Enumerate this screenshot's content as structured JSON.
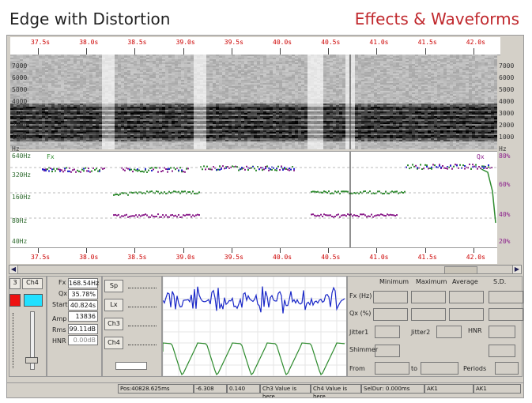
{
  "header": {
    "title": "Edge with Distortion",
    "subtitle": "Effects & Waveforms"
  },
  "time_ticks": [
    "37.5s",
    "38.0s",
    "38.5s",
    "39.0s",
    "39.5s",
    "40.0s",
    "40.5s",
    "41.0s",
    "41.5s",
    "42.0s"
  ],
  "bottom_ticks": [
    "37.5s",
    "38.0s",
    "38.5s",
    "39.0s",
    "39.5s",
    "40.0s",
    "40.5s",
    "41.0s",
    "41.5s",
    "42.0s"
  ],
  "spectrogram": {
    "freq_left": [
      "7000",
      "6000",
      "5000",
      "4000",
      "3000",
      "2000",
      "1000",
      "Hz"
    ],
    "freq_right": [
      "7000",
      "6000",
      "5000",
      "4000",
      "3000",
      "2000",
      "1000",
      "Hz"
    ]
  },
  "pitch_track": {
    "left_labels": [
      "640Hz",
      "320Hz",
      "160Hz",
      "80Hz",
      "40Hz"
    ],
    "right_labels": [
      "80%",
      "60%",
      "40%",
      "20%"
    ],
    "fx_label": "Fx",
    "qx_label": "Qx"
  },
  "left_controls": {
    "tab_left": "3",
    "tab_right": "Ch4"
  },
  "measures": {
    "fx_label": "Fx",
    "fx_value": "168.54Hz",
    "qx_label": "Qx",
    "qx_value": "35.78%",
    "start_label": "Start",
    "start_value": "40.824s",
    "amp_label": "Amp",
    "amp_value": "13836",
    "rms_label": "Rms",
    "rms_value": "99.11dB",
    "hnr_label": "HNR",
    "hnr_value": "0.00dB"
  },
  "side_buttons": [
    "Sp",
    "Lx",
    "Ch3",
    "Ch4"
  ],
  "stats": {
    "col_min": "Minimum",
    "col_max": "Maximum",
    "col_avg": "Average",
    "col_sd": "S.D.",
    "row_fx": "Fx (Hz)",
    "row_qx": "Qx (%)",
    "jitter1": "Jitter1",
    "jitter2": "Jitter2",
    "hnr": "HNR",
    "shimmer": "Shimmer",
    "from": "From",
    "to": "to",
    "periods": "Periods"
  },
  "status": {
    "pos": "Pos:40828.625ms",
    "v1": "-6.308",
    "v2": "0.140",
    "ch3": "Ch3 Value is here",
    "ch4": "Ch4 Value is here",
    "seldur": "SelDur: 0.000ms",
    "ak1": "AK1",
    "ak1b": "AK1"
  },
  "colors": {
    "tick": "#cc0000",
    "fx_series": "#2e8b2e",
    "qx_series": "#8b1e8b",
    "wave_top": "#1a28c8",
    "wave_bottom": "#2e8b2e",
    "cyan": "#22e0ff",
    "red": "#ee1111"
  }
}
